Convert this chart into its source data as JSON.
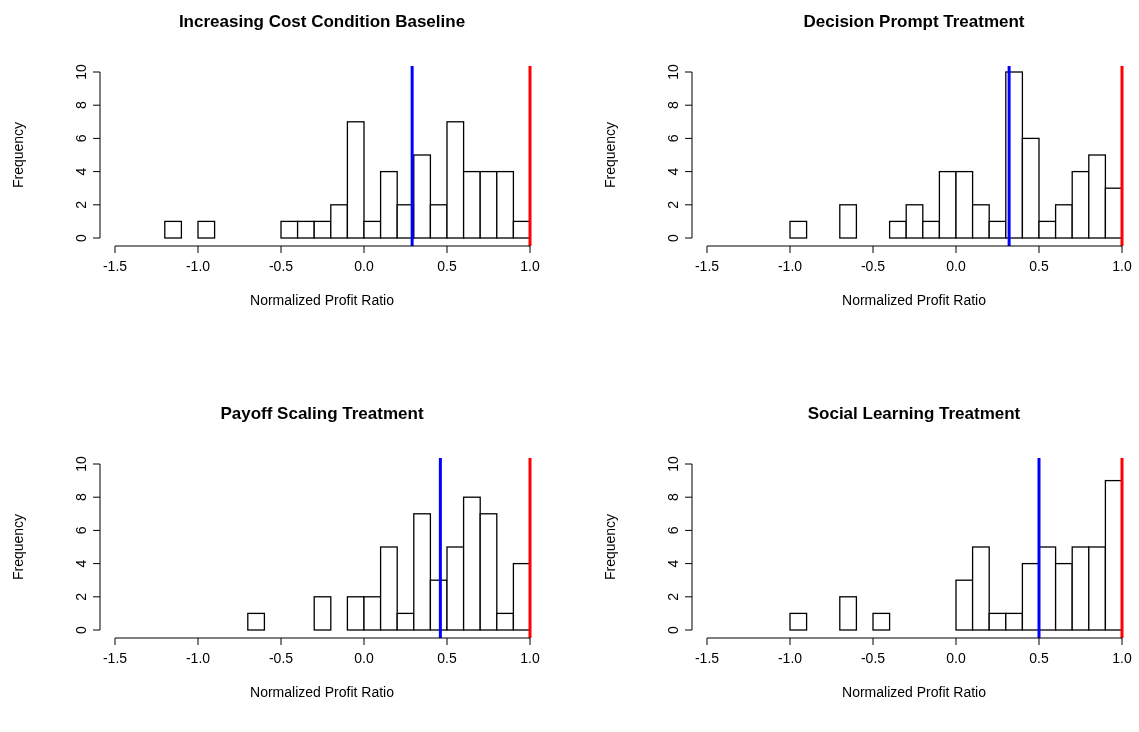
{
  "chart_data": [
    {
      "type": "histogram",
      "title": "Increasing Cost Condition Baseline",
      "xlabel": "Normalized Profit Ratio",
      "ylabel": "Frequency",
      "color": "#ffffff",
      "bins": [
        -1.5,
        -1.4,
        -1.3,
        -1.2,
        -1.1,
        -1.0,
        -0.9,
        -0.8,
        -0.7,
        -0.6,
        -0.5,
        -0.4,
        -0.3,
        -0.2,
        -0.1,
        0.0,
        0.1,
        0.2,
        0.3,
        0.4,
        0.5,
        0.6,
        0.7,
        0.8,
        0.9,
        1.0
      ],
      "values": [
        0,
        0,
        0,
        1,
        0,
        1,
        0,
        0,
        0,
        0,
        1,
        1,
        1,
        2,
        7,
        1,
        4,
        2,
        5,
        2,
        7,
        4,
        4,
        4,
        1
      ],
      "xlim": [
        -1.5,
        1.0
      ],
      "ylim": [
        0,
        10
      ],
      "xticks": [
        {
          "value": -1.5,
          "label": "-1.5"
        },
        {
          "value": -1.0,
          "label": "-1.0"
        },
        {
          "value": -0.5,
          "label": "-0.5"
        },
        {
          "value": 0,
          "label": "0.0"
        },
        {
          "value": 0.5,
          "label": "0.5"
        },
        {
          "value": 1.0,
          "label": "1.0"
        }
      ],
      "yticks": [
        0,
        2,
        4,
        6,
        8,
        10
      ],
      "ref_lines": [
        {
          "axis": "x",
          "value": 0.29,
          "color": "#0000ff"
        },
        {
          "axis": "x",
          "value": 1.0,
          "color": "#ff0000"
        }
      ]
    },
    {
      "type": "histogram",
      "title": "Decision Prompt Treatment",
      "xlabel": "Normalized Profit Ratio",
      "ylabel": "Frequency",
      "color": "#ffffff",
      "bins": [
        -1.5,
        -1.4,
        -1.3,
        -1.2,
        -1.1,
        -1.0,
        -0.9,
        -0.8,
        -0.7,
        -0.6,
        -0.5,
        -0.4,
        -0.3,
        -0.2,
        -0.1,
        0.0,
        0.1,
        0.2,
        0.3,
        0.4,
        0.5,
        0.6,
        0.7,
        0.8,
        0.9,
        1.0
      ],
      "values": [
        0,
        0,
        0,
        0,
        0,
        1,
        0,
        0,
        2,
        0,
        0,
        1,
        2,
        1,
        4,
        4,
        2,
        1,
        10,
        6,
        1,
        2,
        4,
        5,
        3
      ],
      "xlim": [
        -1.5,
        1.0
      ],
      "ylim": [
        0,
        10
      ],
      "xticks": [
        {
          "value": -1.5,
          "label": "-1.5"
        },
        {
          "value": -1.0,
          "label": "-1.0"
        },
        {
          "value": -0.5,
          "label": "-0.5"
        },
        {
          "value": 0,
          "label": "0.0"
        },
        {
          "value": 0.5,
          "label": "0.5"
        },
        {
          "value": 1.0,
          "label": "1.0"
        }
      ],
      "yticks": [
        0,
        2,
        4,
        6,
        8,
        10
      ],
      "ref_lines": [
        {
          "axis": "x",
          "value": 0.32,
          "color": "#0000ff"
        },
        {
          "axis": "x",
          "value": 1.0,
          "color": "#ff0000"
        }
      ]
    },
    {
      "type": "histogram",
      "title": "Payoff Scaling Treatment",
      "xlabel": "Normalized Profit Ratio",
      "ylabel": "Frequency",
      "color": "#ffffff",
      "bins": [
        -1.5,
        -1.4,
        -1.3,
        -1.2,
        -1.1,
        -1.0,
        -0.9,
        -0.8,
        -0.7,
        -0.6,
        -0.5,
        -0.4,
        -0.3,
        -0.2,
        -0.1,
        0.0,
        0.1,
        0.2,
        0.3,
        0.4,
        0.5,
        0.6,
        0.7,
        0.8,
        0.9,
        1.0
      ],
      "values": [
        0,
        0,
        0,
        0,
        0,
        0,
        0,
        0,
        1,
        0,
        0,
        0,
        2,
        0,
        2,
        2,
        5,
        1,
        7,
        3,
        5,
        8,
        7,
        1,
        4
      ],
      "xlim": [
        -1.5,
        1.0
      ],
      "ylim": [
        0,
        10
      ],
      "xticks": [
        {
          "value": -1.5,
          "label": "-1.5"
        },
        {
          "value": -1.0,
          "label": "-1.0"
        },
        {
          "value": -0.5,
          "label": "-0.5"
        },
        {
          "value": 0,
          "label": "0.0"
        },
        {
          "value": 0.5,
          "label": "0.5"
        },
        {
          "value": 1.0,
          "label": "1.0"
        }
      ],
      "yticks": [
        0,
        2,
        4,
        6,
        8,
        10
      ],
      "ref_lines": [
        {
          "axis": "x",
          "value": 0.46,
          "color": "#0000ff"
        },
        {
          "axis": "x",
          "value": 1.0,
          "color": "#ff0000"
        }
      ]
    },
    {
      "type": "histogram",
      "title": "Social Learning Treatment",
      "xlabel": "Normalized Profit Ratio",
      "ylabel": "Frequency",
      "color": "#ffffff",
      "bins": [
        -1.5,
        -1.4,
        -1.3,
        -1.2,
        -1.1,
        -1.0,
        -0.9,
        -0.8,
        -0.7,
        -0.6,
        -0.5,
        -0.4,
        -0.3,
        -0.2,
        -0.1,
        0.0,
        0.1,
        0.2,
        0.3,
        0.4,
        0.5,
        0.6,
        0.7,
        0.8,
        0.9,
        1.0
      ],
      "values": [
        0,
        0,
        0,
        0,
        0,
        1,
        0,
        0,
        2,
        0,
        1,
        0,
        0,
        0,
        0,
        3,
        5,
        1,
        1,
        4,
        5,
        4,
        5,
        5,
        9
      ],
      "xlim": [
        -1.5,
        1.0
      ],
      "ylim": [
        0,
        10
      ],
      "xticks": [
        {
          "value": -1.5,
          "label": "-1.5"
        },
        {
          "value": -1.0,
          "label": "-1.0"
        },
        {
          "value": -0.5,
          "label": "-0.5"
        },
        {
          "value": 0,
          "label": "0.0"
        },
        {
          "value": 0.5,
          "label": "0.5"
        },
        {
          "value": 1.0,
          "label": "1.0"
        }
      ],
      "yticks": [
        0,
        2,
        4,
        6,
        8,
        10
      ],
      "ref_lines": [
        {
          "axis": "x",
          "value": 0.5,
          "color": "#0000ff"
        },
        {
          "axis": "x",
          "value": 1.0,
          "color": "#ff0000"
        }
      ]
    }
  ]
}
